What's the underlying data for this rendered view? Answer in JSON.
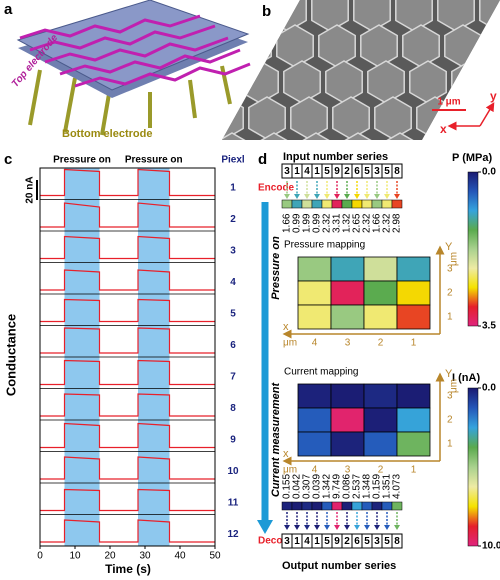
{
  "panel_a": {
    "label": "a",
    "top_electrode": "Top electrode",
    "bottom_electrode": "Bottom electrode"
  },
  "panel_b": {
    "label": "b",
    "scale_bar": "1 μm",
    "x_axis": "x",
    "y_axis": "y"
  },
  "chart_data": {
    "type": "line",
    "label": "c",
    "annotations": [
      "Pressure on",
      "Pressure on"
    ],
    "pressure_intervals": [
      [
        7,
        17
      ],
      [
        28,
        37
      ]
    ],
    "legend_title": "Piexl",
    "y_label": "Conductance",
    "x_label": "Time (s)",
    "xlim": [
      0,
      50
    ],
    "xticks": [
      0,
      10,
      20,
      30,
      40,
      50
    ],
    "scale_bar": {
      "value": 20,
      "label": "20 nA"
    },
    "x": [
      0,
      7,
      7,
      17,
      17,
      28,
      28,
      37,
      37,
      50
    ],
    "series": [
      {
        "name": "1",
        "color": "#e8202a",
        "values": [
          0,
          0,
          26,
          24,
          0,
          0,
          26,
          24,
          0,
          0
        ]
      },
      {
        "name": "2",
        "color": "#e8202a",
        "values": [
          0,
          0,
          24,
          20,
          0,
          0,
          24,
          21,
          0,
          0
        ]
      },
      {
        "name": "3",
        "color": "#e8202a",
        "values": [
          0,
          0,
          22,
          20,
          0,
          0,
          22,
          20,
          0,
          0
        ]
      },
      {
        "name": "4",
        "color": "#e8202a",
        "values": [
          0,
          0,
          20,
          18,
          0,
          0,
          20,
          18,
          0,
          0
        ]
      },
      {
        "name": "5",
        "color": "#e8202a",
        "values": [
          0,
          0,
          22,
          21,
          0,
          0,
          22,
          21,
          0,
          0
        ]
      },
      {
        "name": "6",
        "color": "#e8202a",
        "values": [
          0,
          0,
          25,
          24,
          0,
          0,
          25,
          24,
          0,
          0
        ]
      },
      {
        "name": "7",
        "color": "#e8202a",
        "values": [
          0,
          0,
          24,
          23,
          0,
          0,
          24,
          23,
          0,
          0
        ]
      },
      {
        "name": "8",
        "color": "#e8202a",
        "values": [
          0,
          0,
          22,
          21,
          0,
          0,
          22,
          21,
          0,
          0
        ]
      },
      {
        "name": "9",
        "color": "#e8202a",
        "values": [
          0,
          0,
          24,
          22,
          0,
          0,
          24,
          22,
          0,
          0
        ]
      },
      {
        "name": "10",
        "color": "#e8202a",
        "values": [
          0,
          0,
          22,
          20,
          0,
          0,
          22,
          20,
          0,
          0
        ]
      },
      {
        "name": "11",
        "color": "#e8202a",
        "values": [
          0,
          0,
          21,
          20,
          0,
          0,
          21,
          20,
          0,
          0
        ]
      },
      {
        "name": "12",
        "color": "#e8202a",
        "values": [
          0,
          0,
          22,
          20,
          0,
          0,
          22,
          20,
          0,
          0
        ]
      }
    ],
    "shade_color": "#8ec8ee"
  },
  "panel_d": {
    "label": "d",
    "input_title": "Input number series",
    "input_digits": [
      3,
      1,
      4,
      1,
      5,
      9,
      2,
      6,
      5,
      3,
      5,
      8
    ],
    "encode": "Encode",
    "pressure_values": [
      1.66,
      0.99,
      1.99,
      0.99,
      2.32,
      3.31,
      1.32,
      2.65,
      2.32,
      1.66,
      2.32,
      2.98
    ],
    "pressure_colorbar": {
      "title": "P (MPa)",
      "lim": [
        0,
        3.5
      ],
      "ticks": [
        {
          "value": 0,
          "label": "0.0"
        },
        3.5
      ]
    },
    "colormap": [
      "#1b1b72",
      "#2456b8",
      "#35a3dd",
      "#5aaa4e",
      "#a9d18e",
      "#eeeba4",
      "#f5e300",
      "#e5202b",
      "#e0257e"
    ],
    "pressure_on": "Pressure on",
    "current_measurement": "Current measurement",
    "pressure_mapping": {
      "title": "Pressure mapping",
      "x_label": "x",
      "y_label": "Y",
      "x_unit": "μm",
      "y_unit": "μm",
      "x_ticks": [
        4,
        3,
        2,
        1
      ],
      "y_ticks": [
        3,
        2,
        1
      ]
    },
    "current_mapping": {
      "title": "Current mapping",
      "x_label": "x",
      "y_label": "Y",
      "x_unit": "μm",
      "y_unit": "μm",
      "x_ticks": [
        4,
        3,
        2,
        1
      ],
      "y_ticks": [
        3,
        2,
        1
      ]
    },
    "current_colorbar": {
      "title": "I (nA)",
      "lim": [
        0,
        10
      ],
      "ticks": [
        {
          "value": 0,
          "label": "0.0"
        },
        {
          "value": 10,
          "label": "10.0"
        }
      ]
    },
    "current_values": [
      0.155,
      0.042,
      0.307,
      0.039,
      1.342,
      9.749,
      0.086,
      2.537,
      1.348,
      0.159,
      1.351,
      4.073
    ],
    "decode": "Decode",
    "output_digits": [
      3,
      1,
      4,
      1,
      5,
      9,
      2,
      6,
      5,
      3,
      5,
      8
    ],
    "output_title": "Output number series"
  }
}
